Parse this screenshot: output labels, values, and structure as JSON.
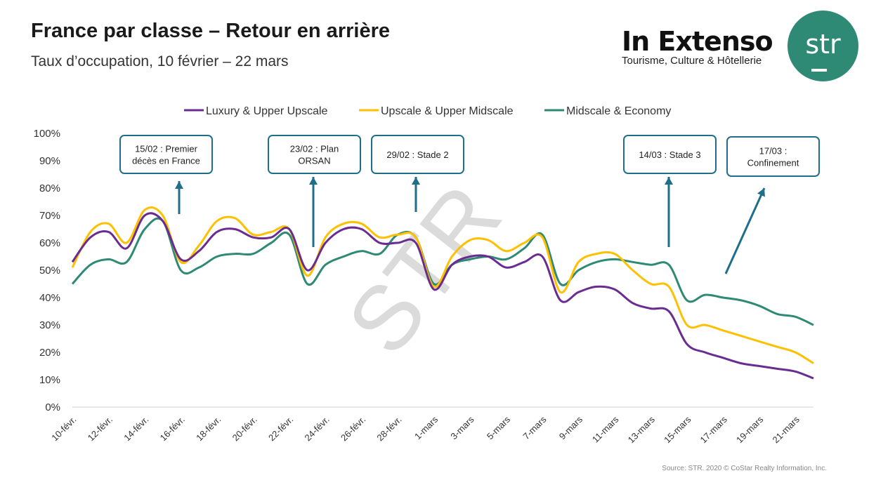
{
  "header": {
    "title": "France par classe – Retour en arrière",
    "subtitle": "Taux d’occupation, 10 février – 22 mars"
  },
  "brand": {
    "name": "In Extenso",
    "tagline": "Tourisme, Culture & Hôtellerie",
    "logo_text": "str",
    "logo_color": "#2e8a74"
  },
  "watermark": "STR",
  "source": "Source: STR. 2020 © CoStar Realty Information, Inc.",
  "chart_data": {
    "type": "line",
    "ylim": [
      0,
      100
    ],
    "yticks": [
      "0%",
      "10%",
      "20%",
      "30%",
      "40%",
      "50%",
      "60%",
      "70%",
      "80%",
      "90%",
      "100%"
    ],
    "x": [
      "10-févr.",
      "11-févr.",
      "12-févr.",
      "13-févr.",
      "14-févr.",
      "15-févr.",
      "16-févr.",
      "17-févr.",
      "18-févr.",
      "19-févr.",
      "20-févr.",
      "21-févr.",
      "22-févr.",
      "23-févr.",
      "24-févr.",
      "25-févr.",
      "26-févr.",
      "27-févr.",
      "28-févr.",
      "29-févr.",
      "1-mars",
      "2-mars",
      "3-mars",
      "4-mars",
      "5-mars",
      "6-mars",
      "7-mars",
      "8-mars",
      "9-mars",
      "10-mars",
      "11-mars",
      "12-mars",
      "13-mars",
      "14-mars",
      "15-mars",
      "16-mars",
      "17-mars",
      "18-mars",
      "19-mars",
      "20-mars",
      "21-mars",
      "22-mars"
    ],
    "xtick_labels": [
      "10-févr.",
      "12-févr.",
      "14-févr.",
      "16-févr.",
      "18-févr.",
      "20-févr.",
      "22-févr.",
      "24-févr.",
      "26-févr.",
      "28-févr.",
      "1-mars",
      "3-mars",
      "5-mars",
      "7-mars",
      "9-mars",
      "11-mars",
      "13-mars",
      "15-mars",
      "17-mars",
      "19-mars",
      "21-mars"
    ],
    "series": [
      {
        "name": "Luxury & Upper Upscale",
        "color": "#6a2c91",
        "values": [
          53,
          62,
          64,
          58,
          70,
          68,
          54,
          57,
          64,
          65,
          62,
          62,
          65,
          50,
          60,
          65,
          65,
          60,
          60,
          60,
          43,
          52,
          55,
          55,
          51,
          53,
          55,
          39,
          42,
          44,
          43,
          38,
          36,
          35,
          23,
          20,
          18,
          16,
          15,
          14,
          13,
          10.5
        ]
      },
      {
        "name": "Upscale & Upper Midscale",
        "color": "#ffc000",
        "values": [
          51,
          64,
          67,
          60,
          72,
          70,
          53,
          59,
          68,
          69,
          63,
          64,
          65,
          48,
          62,
          67,
          67,
          62,
          63,
          62,
          44,
          55,
          61,
          61,
          57,
          60,
          62,
          42,
          53,
          56,
          56,
          50,
          45,
          44,
          30,
          30,
          28,
          26,
          24,
          22,
          20,
          16
        ]
      },
      {
        "name": "Midscale & Economy",
        "color": "#2e8a74",
        "values": [
          45,
          52,
          54,
          53,
          65,
          68,
          50,
          51,
          55,
          56,
          56,
          60,
          63,
          45,
          52,
          55,
          57,
          56,
          63,
          62,
          45,
          52,
          54,
          55,
          54,
          58,
          63,
          45,
          50,
          53,
          54,
          53,
          52,
          52,
          39,
          41,
          40,
          39,
          37,
          34,
          33,
          30
        ]
      }
    ],
    "annotations": [
      {
        "lines": [
          "15/02 : Premier",
          "décès en France"
        ]
      },
      {
        "lines": [
          "23/02 : Plan",
          "ORSAN"
        ]
      },
      {
        "lines": [
          "29/02 : Stade 2"
        ]
      },
      {
        "lines": [
          "14/03 : Stade 3"
        ]
      },
      {
        "lines": [
          "17/03 :",
          "Confinement"
        ]
      }
    ],
    "annotation_color": "#1f6f8b"
  }
}
